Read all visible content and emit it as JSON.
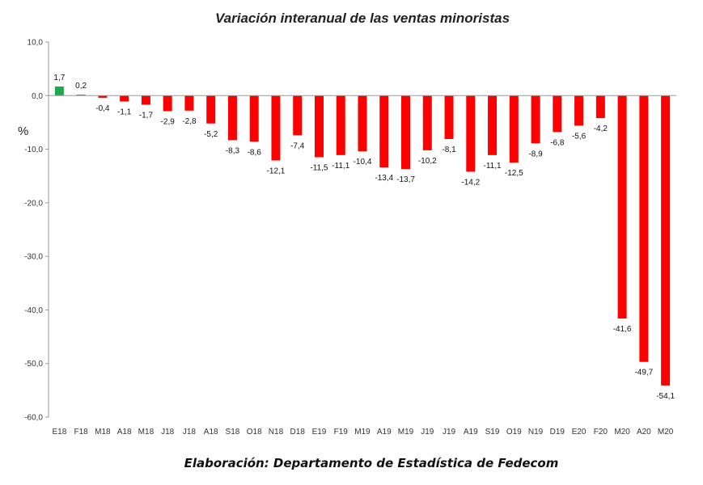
{
  "chart_data": {
    "type": "bar",
    "title": "Variación interanual de las ventas minoristas",
    "ylabel": "%",
    "xlabel": "",
    "ylim": [
      -60,
      10
    ],
    "yticks": [
      "10,0",
      "0,0",
      "-10,0",
      "-20,0",
      "-30,0",
      "-40,0",
      "-50,0",
      "-60,0"
    ],
    "categories": [
      "E18",
      "F18",
      "M18",
      "A18",
      "M18",
      "J18",
      "J18",
      "A18",
      "S18",
      "O18",
      "N18",
      "D18",
      "E19",
      "F19",
      "M19",
      "A19",
      "M19",
      "J19",
      "J19",
      "A19",
      "S19",
      "O19",
      "N19",
      "D19",
      "E20",
      "F20",
      "M20",
      "A20",
      "M20"
    ],
    "values": [
      1.7,
      0.2,
      -0.4,
      -1.1,
      -1.7,
      -2.9,
      -2.8,
      -5.2,
      -8.3,
      -8.6,
      -12.1,
      -7.4,
      -11.5,
      -11.1,
      -10.4,
      -13.4,
      -13.7,
      -10.2,
      -8.1,
      -14.2,
      -11.1,
      -12.5,
      -8.9,
      -6.8,
      -5.6,
      -4.2,
      -41.6,
      -49.7,
      -54.1
    ],
    "labels": [
      "1,7",
      "0,2",
      "-0,4",
      "-1,1",
      "-1,7",
      "-2,9",
      "-2,8",
      "-5,2",
      "-8,3",
      "-8,6",
      "-12,1",
      "-7,4",
      "-11,5",
      "-11,1",
      "-10,4",
      "-13,4",
      "-13,7",
      "-10,2",
      "-8,1",
      "-14,2",
      "-11,1",
      "-12,5",
      "-8,9",
      "-6,8",
      "-5,6",
      "-4,2",
      "-41,6",
      "-49,7",
      "-54,1"
    ],
    "colors": {
      "positive": "#1fa84f",
      "negative": "#ff0000"
    },
    "grid": false
  },
  "footer": "Elaboración: Departamento de Estadística de Fedecom"
}
